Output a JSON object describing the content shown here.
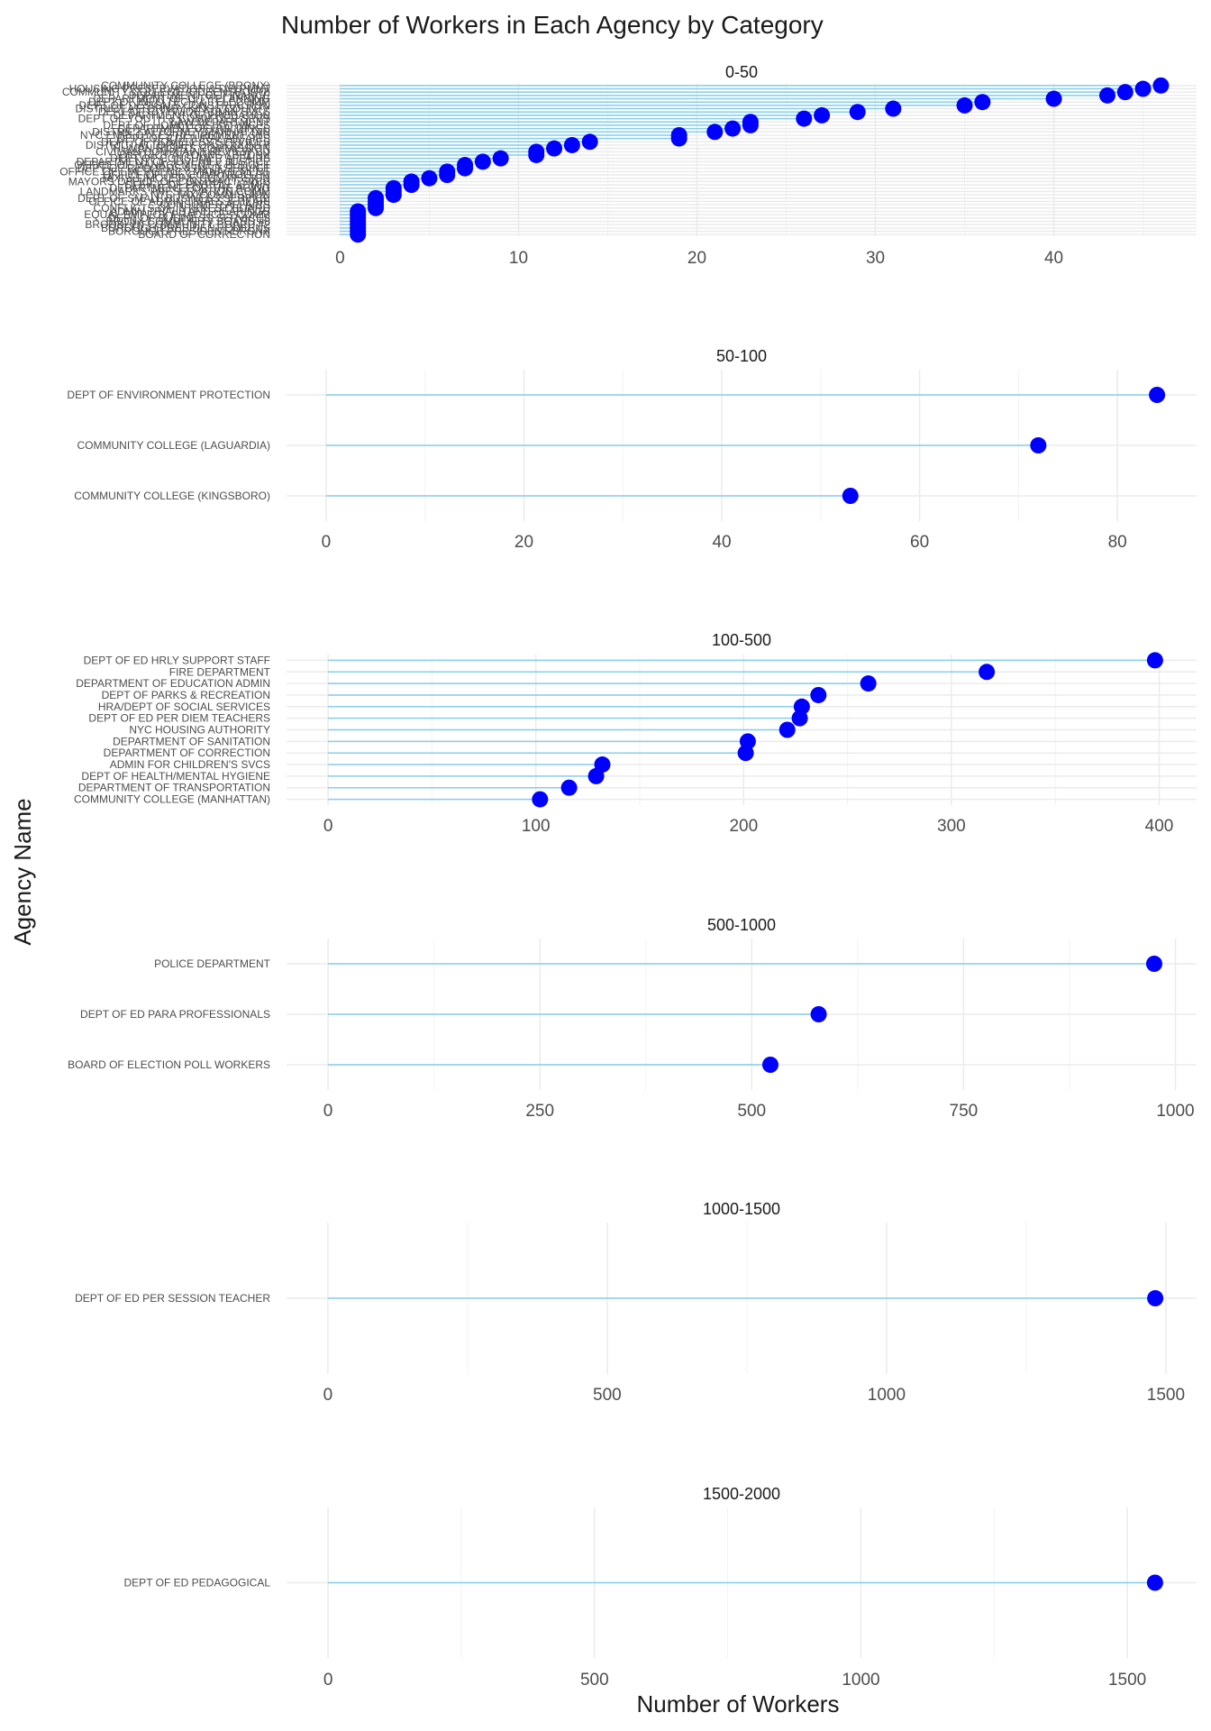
{
  "chart_data": {
    "type": "lollipop",
    "title": "Number of Workers in Each Agency by Category",
    "xlabel": "Number of Workers",
    "ylabel": "Agency Name",
    "grid": true,
    "colors": {
      "stem": "#87ceeb",
      "point": "#0000ff",
      "grid": "#ebebeb"
    },
    "facets": [
      {
        "label": "0-50",
        "xlim": [
          -3,
          48
        ],
        "xticks": [
          0,
          10,
          20,
          30,
          40
        ],
        "overcrowded": true,
        "agencies": [
          {
            "name": "COMMUNITY COLLEGE (BRONX)",
            "value": 46
          },
          {
            "name": "HOUSING PRESERVATION & DVLPMNT",
            "value": 45
          },
          {
            "name": "COMMUNITY COLLEGE (QUEENSBORO)",
            "value": 44
          },
          {
            "name": "DEPARTMENT OF FINANCE",
            "value": 43
          },
          {
            "name": "DEPARTMENT OF CITY PLANNING",
            "value": 40
          },
          {
            "name": "DEPT OF INFO TECH & TELECOMM",
            "value": 36
          },
          {
            "name": "DEPT OF DESIGN & CONSTRUCTION",
            "value": 35
          },
          {
            "name": "DISTRICT ATTORNEY KINGS COUNTY",
            "value": 31
          },
          {
            "name": "DEPT OF CITYWIDE ADMIN SVCS",
            "value": 29
          },
          {
            "name": "DEPARTMENT OF PROBATION",
            "value": 27
          },
          {
            "name": "DEPT OF YOUTH & COMM DEV SRVS",
            "value": 26
          },
          {
            "name": "LAW DEPARTMENT",
            "value": 23
          },
          {
            "name": "DEPT OF HOMELESS SERVICES",
            "value": 23
          },
          {
            "name": "DEPARTMENT OF BUILDINGS",
            "value": 22
          },
          {
            "name": "DISTRICT ATTORNEY-MANHATTAN",
            "value": 21
          },
          {
            "name": "NYC EMPLOYEES RETIREMENT SYS",
            "value": 19
          },
          {
            "name": "DEPT OF CULTURAL AFFAIRS",
            "value": 19
          },
          {
            "name": "DEPT. OF HOMELESS SERVICES",
            "value": 14
          },
          {
            "name": "DISTRICT ATTORNEY QNS COUNTY",
            "value": 13
          },
          {
            "name": "HUMAN RIGHTS COMMISSION",
            "value": 12
          },
          {
            "name": "CIVILIAN COMPLAINT REVIEW BD",
            "value": 11
          },
          {
            "name": "DISTRICT ATTORNEY-BRONX",
            "value": 11
          },
          {
            "name": "DEPT OF CONSUMER AFFAIRS",
            "value": 9
          },
          {
            "name": "DEPARTMENT OF JUVENILE JUSTICE",
            "value": 8
          },
          {
            "name": "OFFICE OF MANAGEMENT & BUDGET",
            "value": 7
          },
          {
            "name": "DEPT OF RECORDS & INFO SERVICE",
            "value": 7
          },
          {
            "name": "OFFICE OF EMERGENCY MANAGEMENT",
            "value": 6
          },
          {
            "name": "OFFICE OF THE COMPTROLLER",
            "value": 6
          },
          {
            "name": "TAXI & LIMOUSINE COMMISSION",
            "value": 5
          },
          {
            "name": "MAYORS OFFICE OF CONTRACT SVCS",
            "value": 4
          },
          {
            "name": "OFFICE OF PAYROLL ADMIN",
            "value": 4
          },
          {
            "name": "DEPARTMENT FOR THE AGING",
            "value": 3
          },
          {
            "name": "LANDMARKS PRESERVATION COMM",
            "value": 3
          },
          {
            "name": "NYC TAX COMMISSION",
            "value": 3
          },
          {
            "name": "DEPT OF SMALL BUSINESS SERVICE",
            "value": 2
          },
          {
            "name": "OFFICE OF ADMIN TRIALS & HEARI",
            "value": 2
          },
          {
            "name": "CONSUMER AFFAIRS",
            "value": 2
          },
          {
            "name": "CONFLICTS OF INTEREST BOARD",
            "value": 2
          },
          {
            "name": "ADMIN TRIALS AND HEARINGS",
            "value": 1
          },
          {
            "name": "EQUAL EMPLOY PRACTICES COMM",
            "value": 1
          },
          {
            "name": "DEPT OF BUSINESS SERVICES",
            "value": 1
          },
          {
            "name": "BRONX COMMUNITY BOARD #8",
            "value": 1
          },
          {
            "name": "BROOKLYN COMMUNITY BOARD #2",
            "value": 1
          },
          {
            "name": "BOROUGH PRESIDENT-QUEENS",
            "value": 1
          },
          {
            "name": "BOROUGH PRESIDENT-BRONX",
            "value": 1
          },
          {
            "name": "BOARD OF CORRECTION",
            "value": 1
          }
        ]
      },
      {
        "label": "50-100",
        "xlim": [
          -4,
          88
        ],
        "xticks": [
          0,
          20,
          40,
          60,
          80
        ],
        "agencies": [
          {
            "name": "DEPT OF ENVIRONMENT PROTECTION",
            "value": 84
          },
          {
            "name": "COMMUNITY COLLEGE (LAGUARDIA)",
            "value": 72
          },
          {
            "name": "COMMUNITY COLLEGE (KINGSBORO)",
            "value": 53
          }
        ]
      },
      {
        "label": "100-500",
        "xlim": [
          -20,
          418
        ],
        "xticks": [
          0,
          100,
          200,
          300,
          400
        ],
        "agencies": [
          {
            "name": "DEPT OF ED HRLY SUPPORT STAFF",
            "value": 398
          },
          {
            "name": "FIRE DEPARTMENT",
            "value": 317
          },
          {
            "name": "DEPARTMENT OF EDUCATION ADMIN",
            "value": 260
          },
          {
            "name": "DEPT OF PARKS & RECREATION",
            "value": 236
          },
          {
            "name": "HRA/DEPT OF SOCIAL SERVICES",
            "value": 228
          },
          {
            "name": "DEPT OF ED PER DIEM TEACHERS",
            "value": 227
          },
          {
            "name": "NYC HOUSING AUTHORITY",
            "value": 221
          },
          {
            "name": "DEPARTMENT OF SANITATION",
            "value": 202
          },
          {
            "name": "DEPARTMENT OF CORRECTION",
            "value": 201
          },
          {
            "name": "ADMIN FOR CHILDREN'S SVCS",
            "value": 132
          },
          {
            "name": "DEPT OF HEALTH/MENTAL HYGIENE",
            "value": 129
          },
          {
            "name": "DEPARTMENT OF TRANSPORTATION",
            "value": 116
          },
          {
            "name": "COMMUNITY COLLEGE (MANHATTAN)",
            "value": 102
          }
        ]
      },
      {
        "label": "500-1000",
        "xlim": [
          -49,
          1025
        ],
        "xticks": [
          0,
          250,
          500,
          750,
          1000
        ],
        "agencies": [
          {
            "name": "POLICE DEPARTMENT",
            "value": 975
          },
          {
            "name": "DEPT OF ED PARA PROFESSIONALS",
            "value": 579
          },
          {
            "name": "BOARD OF ELECTION POLL WORKERS",
            "value": 522
          }
        ]
      },
      {
        "label": "1000-1500",
        "xlim": [
          -74,
          1555
        ],
        "xticks": [
          0,
          500,
          1000,
          1500
        ],
        "agencies": [
          {
            "name": "DEPT OF ED PER SESSION TEACHER",
            "value": 1481
          }
        ]
      },
      {
        "label": "1500-2000",
        "xlim": [
          -78,
          1630
        ],
        "xticks": [
          0,
          500,
          1000,
          1500
        ],
        "agencies": [
          {
            "name": "DEPT OF ED PEDAGOGICAL",
            "value": 1552
          }
        ]
      }
    ]
  }
}
